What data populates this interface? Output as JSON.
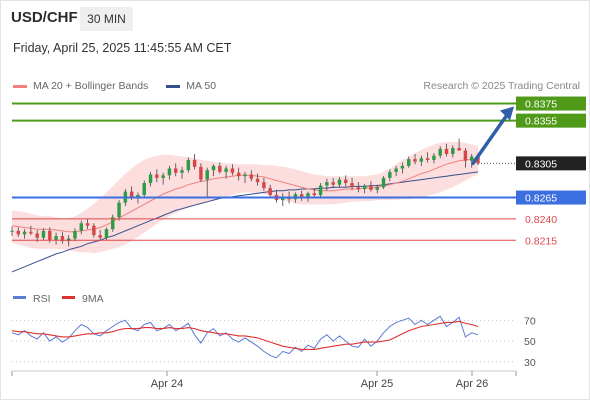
{
  "header": {
    "symbol": "USD/CHF",
    "timeframe": "30 MIN",
    "timestamp": "Friday, April 25, 2025 11:45:55 AM CET",
    "credit": "Research © 2025 Trading Central"
  },
  "colors": {
    "target": "#4f9a18",
    "pivot": "#3b6fe0",
    "support": "#e0474c",
    "current": "#222222",
    "ma20": "#f08080",
    "band_fill": "#fbd3d3",
    "ma50": "#35508c",
    "up_candle": "#2e9b47",
    "down_candle": "#d64848",
    "rsi": "#5b7bd5",
    "rsi_ma": "#e03131",
    "arrow": "#2f5fa8"
  },
  "chart_data": [
    {
      "type": "candlestick",
      "title": "USD/CHF",
      "xlabel": "",
      "ylabel": "",
      "ylim": [
        0.8165,
        0.8385
      ],
      "x_ticks": [
        "Apr 24",
        "Apr 25",
        "Apr 26"
      ],
      "legend": [
        "MA 20 + Bollinger Bands",
        "MA 50"
      ],
      "legend_position": "top-left",
      "candles_ohlc": [
        [
          0.8225,
          0.8231,
          0.822,
          0.8226
        ],
        [
          0.8226,
          0.823,
          0.8219,
          0.8222
        ],
        [
          0.8222,
          0.8228,
          0.8217,
          0.8225
        ],
        [
          0.8225,
          0.8232,
          0.8221,
          0.8223
        ],
        [
          0.8223,
          0.8227,
          0.8213,
          0.8218
        ],
        [
          0.8218,
          0.8229,
          0.8215,
          0.8226
        ],
        [
          0.8226,
          0.823,
          0.8212,
          0.8215
        ],
        [
          0.8215,
          0.8224,
          0.821,
          0.822
        ],
        [
          0.822,
          0.8225,
          0.8211,
          0.8214
        ],
        [
          0.8214,
          0.8221,
          0.8208,
          0.8217
        ],
        [
          0.8217,
          0.8229,
          0.8214,
          0.8226
        ],
        [
          0.8226,
          0.8238,
          0.8222,
          0.8235
        ],
        [
          0.8235,
          0.824,
          0.8228,
          0.8232
        ],
        [
          0.8232,
          0.8235,
          0.8218,
          0.8221
        ],
        [
          0.8221,
          0.8227,
          0.8214,
          0.8218
        ],
        [
          0.8218,
          0.823,
          0.8215,
          0.8228
        ],
        [
          0.8228,
          0.8245,
          0.8225,
          0.8242
        ],
        [
          0.8242,
          0.8262,
          0.8238,
          0.8259
        ],
        [
          0.8259,
          0.8275,
          0.8255,
          0.8272
        ],
        [
          0.8272,
          0.8278,
          0.8262,
          0.8266
        ],
        [
          0.8266,
          0.8271,
          0.8258,
          0.8268
        ],
        [
          0.8268,
          0.8285,
          0.8265,
          0.8282
        ],
        [
          0.8282,
          0.8295,
          0.8278,
          0.8292
        ],
        [
          0.8292,
          0.8298,
          0.8283,
          0.8288
        ],
        [
          0.8288,
          0.8294,
          0.828,
          0.8291
        ],
        [
          0.8291,
          0.8302,
          0.8286,
          0.8299
        ],
        [
          0.8299,
          0.8305,
          0.829,
          0.8294
        ],
        [
          0.8294,
          0.8301,
          0.8287,
          0.8297
        ],
        [
          0.8297,
          0.8312,
          0.8294,
          0.8309
        ],
        [
          0.8309,
          0.8316,
          0.8298,
          0.8301
        ],
        [
          0.8301,
          0.8305,
          0.8283,
          0.8286
        ],
        [
          0.8286,
          0.83,
          0.8266,
          0.8297
        ],
        [
          0.8297,
          0.8304,
          0.829,
          0.8302
        ],
        [
          0.8302,
          0.8306,
          0.8293,
          0.8295
        ],
        [
          0.8295,
          0.8302,
          0.8287,
          0.8299
        ],
        [
          0.8299,
          0.8304,
          0.8291,
          0.8294
        ],
        [
          0.8294,
          0.83,
          0.8285,
          0.829
        ],
        [
          0.829,
          0.8295,
          0.8282,
          0.8292
        ],
        [
          0.8292,
          0.8297,
          0.8284,
          0.8287
        ],
        [
          0.8287,
          0.8293,
          0.8279,
          0.8283
        ],
        [
          0.8283,
          0.8288,
          0.8273,
          0.8276
        ],
        [
          0.8276,
          0.828,
          0.8265,
          0.8268
        ],
        [
          0.8268,
          0.8274,
          0.8259,
          0.8262
        ],
        [
          0.8262,
          0.827,
          0.8255,
          0.8266
        ],
        [
          0.8266,
          0.8272,
          0.8258,
          0.8263
        ],
        [
          0.8263,
          0.8271,
          0.8259,
          0.8269
        ],
        [
          0.8269,
          0.8273,
          0.8261,
          0.8264
        ],
        [
          0.8264,
          0.8272,
          0.826,
          0.827
        ],
        [
          0.827,
          0.8276,
          0.8265,
          0.8268
        ],
        [
          0.8268,
          0.8282,
          0.8266,
          0.8279
        ],
        [
          0.8279,
          0.8287,
          0.8273,
          0.8283
        ],
        [
          0.8283,
          0.8288,
          0.8276,
          0.828
        ],
        [
          0.828,
          0.8289,
          0.8277,
          0.8286
        ],
        [
          0.8286,
          0.8291,
          0.8278,
          0.8282
        ],
        [
          0.8282,
          0.8288,
          0.8274,
          0.8277
        ],
        [
          0.8277,
          0.8283,
          0.8271,
          0.8275
        ],
        [
          0.8275,
          0.8281,
          0.827,
          0.8279
        ],
        [
          0.8279,
          0.8284,
          0.8272,
          0.8274
        ],
        [
          0.8274,
          0.828,
          0.827,
          0.8277
        ],
        [
          0.8277,
          0.829,
          0.8275,
          0.8288
        ],
        [
          0.8288,
          0.8298,
          0.8284,
          0.8295
        ],
        [
          0.8295,
          0.8302,
          0.829,
          0.8299
        ],
        [
          0.8299,
          0.8306,
          0.8293,
          0.8302
        ],
        [
          0.8302,
          0.8313,
          0.83,
          0.831
        ],
        [
          0.831,
          0.8316,
          0.8304,
          0.8307
        ],
        [
          0.8307,
          0.8314,
          0.8302,
          0.8311
        ],
        [
          0.8311,
          0.8318,
          0.8306,
          0.8309
        ],
        [
          0.8309,
          0.8317,
          0.8305,
          0.8314
        ],
        [
          0.8314,
          0.8325,
          0.8311,
          0.8322
        ],
        [
          0.8322,
          0.8328,
          0.8313,
          0.8316
        ],
        [
          0.8316,
          0.8326,
          0.8312,
          0.8323
        ],
        [
          0.8323,
          0.8334,
          0.832,
          0.832
        ],
        [
          0.832,
          0.8323,
          0.83,
          0.8308
        ],
        [
          0.8308,
          0.8316,
          0.83,
          0.8313
        ],
        [
          0.8313,
          0.8316,
          0.8303,
          0.8305
        ]
      ],
      "ma20": [
        0.8232,
        0.8231,
        0.823,
        0.8229,
        0.8228,
        0.8228,
        0.8228,
        0.8227,
        0.8226,
        0.8225,
        0.8225,
        0.8226,
        0.8227,
        0.8228,
        0.823,
        0.8233,
        0.8237,
        0.8241,
        0.8245,
        0.8249,
        0.8253,
        0.8257,
        0.8261,
        0.8265,
        0.8269,
        0.8272,
        0.8275,
        0.8277,
        0.828,
        0.8282,
        0.8284,
        0.8285,
        0.8287,
        0.8288,
        0.8289,
        0.829,
        0.8291,
        0.8291,
        0.8291,
        0.829,
        0.8289,
        0.8287,
        0.8285,
        0.8283,
        0.8281,
        0.8279,
        0.8277,
        0.8275,
        0.8274,
        0.8273,
        0.8273,
        0.8273,
        0.8274,
        0.8275,
        0.8275,
        0.8275,
        0.8276,
        0.8276,
        0.8277,
        0.8278,
        0.828,
        0.8282,
        0.8284,
        0.8287,
        0.829,
        0.8293,
        0.8295,
        0.8298,
        0.8301,
        0.8304,
        0.8306,
        0.8308,
        0.8309,
        0.831,
        0.831
      ],
      "band_upper": [
        0.825,
        0.8249,
        0.8248,
        0.8246,
        0.8244,
        0.8243,
        0.8243,
        0.8242,
        0.8241,
        0.8241,
        0.8243,
        0.8247,
        0.8252,
        0.8258,
        0.8264,
        0.8271,
        0.8278,
        0.8286,
        0.8293,
        0.8299,
        0.8305,
        0.8309,
        0.8312,
        0.8314,
        0.8315,
        0.8315,
        0.8314,
        0.8313,
        0.8312,
        0.8311,
        0.8309,
        0.8308,
        0.8307,
        0.8306,
        0.8305,
        0.8305,
        0.8304,
        0.8304,
        0.8304,
        0.8304,
        0.8303,
        0.8303,
        0.8302,
        0.8301,
        0.83,
        0.8298,
        0.8296,
        0.8294,
        0.8292,
        0.8291,
        0.829,
        0.829,
        0.829,
        0.829,
        0.829,
        0.829,
        0.829,
        0.8291,
        0.8292,
        0.8295,
        0.8299,
        0.8304,
        0.8309,
        0.8313,
        0.8317,
        0.8321,
        0.8324,
        0.8327,
        0.8329,
        0.833,
        0.833,
        0.833,
        0.8329,
        0.8327,
        0.8325
      ],
      "band_lower": [
        0.8212,
        0.821,
        0.8208,
        0.8206,
        0.8205,
        0.8205,
        0.8205,
        0.8205,
        0.8204,
        0.8203,
        0.8202,
        0.8201,
        0.8201,
        0.82,
        0.8201,
        0.8203,
        0.8205,
        0.8207,
        0.821,
        0.8214,
        0.8219,
        0.8224,
        0.8229,
        0.8234,
        0.8239,
        0.8243,
        0.8247,
        0.825,
        0.8253,
        0.8256,
        0.8258,
        0.826,
        0.8262,
        0.8264,
        0.8266,
        0.8268,
        0.827,
        0.8271,
        0.8271,
        0.827,
        0.8269,
        0.8267,
        0.8264,
        0.8262,
        0.826,
        0.8258,
        0.8257,
        0.8257,
        0.8257,
        0.8257,
        0.8257,
        0.8257,
        0.8258,
        0.8259,
        0.826,
        0.826,
        0.8261,
        0.8261,
        0.8262,
        0.8262,
        0.8262,
        0.8262,
        0.8263,
        0.8263,
        0.8264,
        0.8265,
        0.8267,
        0.8269,
        0.8271,
        0.8274,
        0.8277,
        0.8281,
        0.8285,
        0.8289,
        0.8292
      ],
      "ma50": [
        0.8178,
        0.8181,
        0.8184,
        0.8187,
        0.819,
        0.8193,
        0.8196,
        0.8199,
        0.8201,
        0.8204,
        0.8206,
        0.8208,
        0.8211,
        0.8213,
        0.8215,
        0.8218,
        0.822,
        0.8223,
        0.8226,
        0.8229,
        0.8232,
        0.8235,
        0.8238,
        0.8241,
        0.8244,
        0.8247,
        0.825,
        0.8252,
        0.8254,
        0.8256,
        0.8258,
        0.826,
        0.8262,
        0.8264,
        0.8265,
        0.8266,
        0.8267,
        0.8268,
        0.8269,
        0.827,
        0.8271,
        0.8272,
        0.8273,
        0.8273,
        0.8274,
        0.8274,
        0.8275,
        0.8275,
        0.8275,
        0.8276,
        0.8276,
        0.8277,
        0.8277,
        0.8277,
        0.8278,
        0.8278,
        0.8278,
        0.8279,
        0.8279,
        0.828,
        0.8281,
        0.8282,
        0.8283,
        0.8284,
        0.8285,
        0.8286,
        0.8287,
        0.8288,
        0.8289,
        0.829,
        0.8291,
        0.8292,
        0.8293,
        0.8294,
        0.8295
      ],
      "levels": [
        {
          "label": "0.8375",
          "value": 0.8375,
          "kind": "target"
        },
        {
          "label": "0.8355",
          "value": 0.8355,
          "kind": "target"
        },
        {
          "label": "0.8305",
          "value": 0.8305,
          "kind": "current"
        },
        {
          "label": "0.8265",
          "value": 0.8265,
          "kind": "pivot"
        },
        {
          "label": "0.8240",
          "value": 0.824,
          "kind": "support"
        },
        {
          "label": "0.8215",
          "value": 0.8215,
          "kind": "support"
        }
      ],
      "arrow": {
        "from_value": 0.8305,
        "to_value": 0.8368,
        "direction": "up"
      }
    },
    {
      "type": "line",
      "title": "",
      "xlabel": "",
      "ylabel": "",
      "ylim": [
        25,
        78
      ],
      "y_ticks": [
        70,
        50,
        30
      ],
      "legend": [
        "RSI",
        "9MA"
      ],
      "legend_position": "top-left",
      "series": [
        {
          "name": "RSI",
          "values": [
            58,
            56,
            60,
            55,
            52,
            58,
            50,
            54,
            49,
            53,
            60,
            66,
            63,
            57,
            55,
            60,
            64,
            68,
            70,
            62,
            60,
            66,
            68,
            60,
            62,
            66,
            60,
            63,
            67,
            56,
            48,
            58,
            62,
            55,
            58,
            52,
            49,
            53,
            49,
            45,
            40,
            36,
            34,
            40,
            38,
            44,
            40,
            46,
            43,
            52,
            56,
            50,
            55,
            50,
            45,
            44,
            52,
            45,
            50,
            58,
            64,
            68,
            70,
            72,
            66,
            70,
            66,
            70,
            74,
            64,
            68,
            73,
            54,
            58,
            56
          ]
        },
        {
          "name": "9MA",
          "values": [
            60,
            59,
            59,
            58,
            57,
            57,
            56,
            55,
            54,
            54,
            55,
            56,
            57,
            57,
            58,
            58,
            59,
            61,
            62,
            62,
            62,
            63,
            63,
            62,
            62,
            63,
            62,
            62,
            63,
            62,
            60,
            59,
            58,
            57,
            57,
            56,
            55,
            55,
            54,
            53,
            51,
            49,
            47,
            45,
            44,
            43,
            42,
            42,
            42,
            43,
            44,
            45,
            46,
            47,
            47,
            48,
            49,
            49,
            49,
            50,
            51,
            54,
            57,
            60,
            62,
            64,
            65,
            66,
            67,
            68,
            68,
            69,
            67,
            66,
            64
          ]
        }
      ]
    }
  ]
}
